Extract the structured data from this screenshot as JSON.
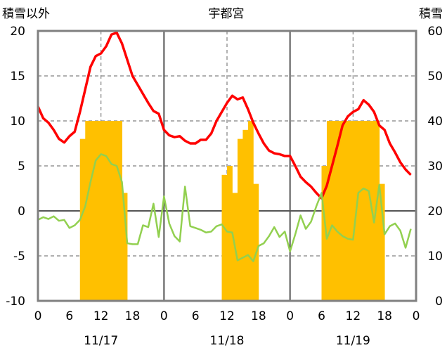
{
  "chart_data": {
    "type": "bar+line",
    "title": "宇都宮",
    "left_axis_label": "積雪以外",
    "right_axis_label": "積雪",
    "left_ylim": [
      -10,
      20
    ],
    "right_ylim": [
      0,
      60
    ],
    "left_ticks": [
      "20",
      "15",
      "10",
      "5",
      "0",
      "-5",
      "-10"
    ],
    "right_ticks": [
      "60",
      "50",
      "40",
      "30",
      "20",
      "10",
      "0"
    ],
    "x_hour_labels": [
      "0",
      "6",
      "12",
      "18",
      "0",
      "6",
      "12",
      "18",
      "0",
      "6",
      "12",
      "18",
      "0"
    ],
    "date_labels": [
      "11/17",
      "11/18",
      "11/19"
    ],
    "grid": true,
    "colors": {
      "bars": "#FFC000",
      "temperature": "#FF0000",
      "green_line": "#92D050",
      "purple_line": "#7030A0",
      "frame": "#808080",
      "grid": "#808080"
    },
    "bars_right_axis": [
      {
        "hour": 8,
        "value": 36
      },
      {
        "hour": 9,
        "value": 40
      },
      {
        "hour": 10,
        "value": 40
      },
      {
        "hour": 11,
        "value": 40
      },
      {
        "hour": 12,
        "value": 40
      },
      {
        "hour": 13,
        "value": 40
      },
      {
        "hour": 14,
        "value": 40
      },
      {
        "hour": 15,
        "value": 40
      },
      {
        "hour": 16,
        "value": 24
      },
      {
        "hour": 35,
        "value": 28
      },
      {
        "hour": 36,
        "value": 30
      },
      {
        "hour": 37,
        "value": 24
      },
      {
        "hour": 38,
        "value": 36
      },
      {
        "hour": 39,
        "value": 38
      },
      {
        "hour": 40,
        "value": 40
      },
      {
        "hour": 41,
        "value": 26
      },
      {
        "hour": 54,
        "value": 30
      },
      {
        "hour": 55,
        "value": 40
      },
      {
        "hour": 56,
        "value": 40
      },
      {
        "hour": 57,
        "value": 40
      },
      {
        "hour": 58,
        "value": 40
      },
      {
        "hour": 59,
        "value": 40
      },
      {
        "hour": 60,
        "value": 40
      },
      {
        "hour": 61,
        "value": 40
      },
      {
        "hour": 62,
        "value": 40
      },
      {
        "hour": 63,
        "value": 40
      },
      {
        "hour": 64,
        "value": 40
      },
      {
        "hour": 65,
        "value": 26
      }
    ],
    "series": [
      {
        "color": "#FF0000",
        "axis": "left",
        "values": [
          11.6,
          10.3,
          9.8,
          9.0,
          8.0,
          7.6,
          8.3,
          8.8,
          11.0,
          13.5,
          16.0,
          17.2,
          17.5,
          18.3,
          19.6,
          19.8,
          18.6,
          16.8,
          15.0,
          14.0,
          13.0,
          12.0,
          11.1,
          10.8,
          9.0,
          8.4,
          8.2,
          8.3,
          7.8,
          7.5,
          7.5,
          7.9,
          7.9,
          8.6,
          10.0,
          11.0,
          12.0,
          12.8,
          12.4,
          12.6,
          11.3,
          9.8,
          8.6,
          7.5,
          6.7,
          6.4,
          6.3,
          6.1,
          6.1,
          5.0,
          3.8,
          3.2,
          2.7,
          2.0,
          1.4,
          2.8,
          5.0,
          7.2,
          9.5,
          10.5,
          11.0,
          11.3,
          12.3,
          11.8,
          11.0,
          9.5,
          9.0,
          7.5,
          6.5,
          5.4,
          4.6,
          4.0
        ]
      },
      {
        "color": "#92D050",
        "axis": "left",
        "values": [
          -1.0,
          -0.7,
          -0.9,
          -0.6,
          -1.1,
          -1.0,
          -1.9,
          -1.6,
          -1.0,
          0.5,
          3.2,
          5.6,
          6.3,
          6.1,
          5.2,
          5.0,
          3.2,
          -3.6,
          -3.7,
          -3.7,
          -1.6,
          -1.8,
          0.8,
          -2.9,
          1.6,
          -1.4,
          -2.8,
          -3.4,
          2.7,
          -1.7,
          -1.9,
          -2.1,
          -2.4,
          -2.3,
          -1.7,
          -1.5,
          -2.3,
          -2.4,
          -5.5,
          -5.2,
          -4.9,
          -5.6,
          -3.9,
          -3.6,
          -2.8,
          -1.8,
          -2.9,
          -2.3,
          -4.5,
          -2.6,
          -0.5,
          -2.0,
          -1.2,
          0.5,
          2.0,
          -3.1,
          -1.6,
          -2.3,
          -2.8,
          -3.1,
          -3.2,
          2.0,
          2.5,
          2.2,
          -1.3,
          2.9,
          -2.6,
          -1.7,
          -1.4,
          -2.2,
          -4.1,
          -2.0
        ]
      },
      {
        "color": "#7030A0",
        "axis": "left",
        "values": [
          -10,
          -10
        ]
      }
    ]
  }
}
